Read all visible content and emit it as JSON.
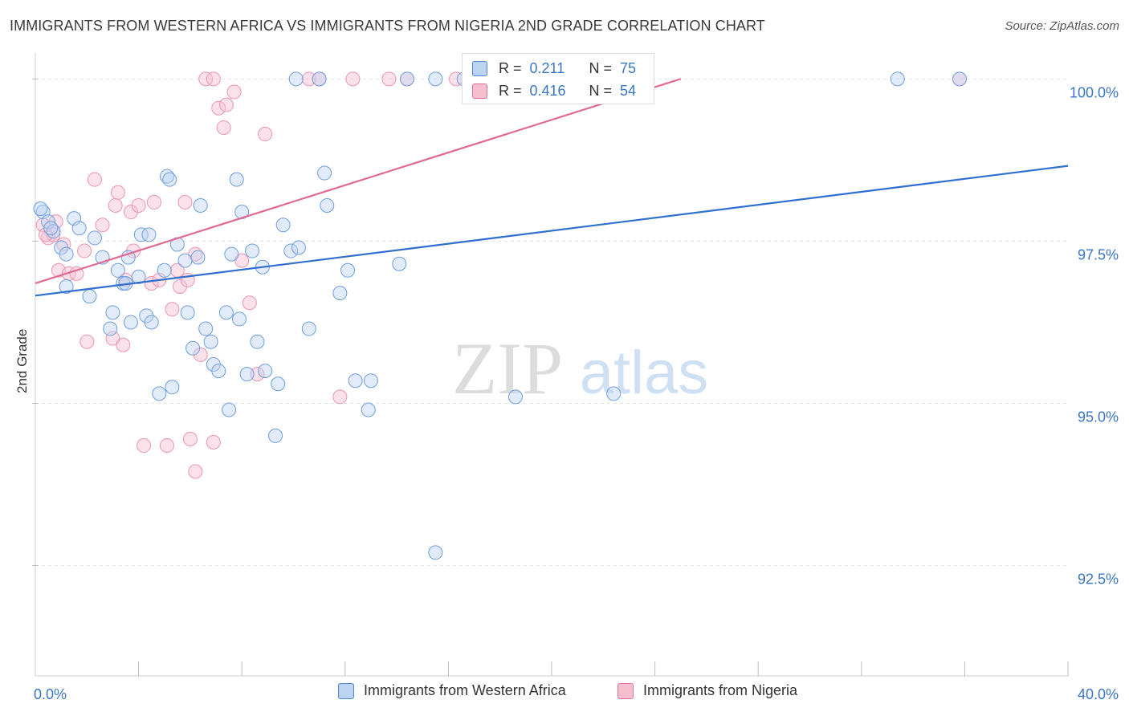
{
  "title": "IMMIGRANTS FROM WESTERN AFRICA VS IMMIGRANTS FROM NIGERIA 2ND GRADE CORRELATION CHART",
  "source": "Source: ZipAtlas.com",
  "watermark": {
    "zip": "ZIP",
    "atlas": "atlas"
  },
  "colors": {
    "blue": "#4f86d6",
    "blue_fill": "#bcd3f2",
    "pink": "#e26f97",
    "pink_fill": "#f6bfd0",
    "axis_text": "#3a76c6"
  },
  "legend_stats": [
    {
      "r_label": "R =",
      "r_value": "0.211",
      "n_label": "N =",
      "n_value": "75"
    },
    {
      "r_label": "R =",
      "r_value": "0.416",
      "n_label": "N =",
      "n_value": "54"
    }
  ],
  "chart_data": {
    "type": "scatter",
    "xlabel": "",
    "ylabel": "2nd Grade",
    "xlim": [
      0,
      40
    ],
    "ylim": [
      90.8,
      100.4
    ],
    "x_tick_labels": [
      {
        "value": 0,
        "label": "0.0%"
      },
      {
        "value": 40,
        "label": "40.0%"
      }
    ],
    "y_tick_labels": [
      {
        "value": 92.5,
        "label": "92.5%"
      },
      {
        "value": 95.0,
        "label": "95.0%"
      },
      {
        "value": 97.5,
        "label": "97.5%"
      },
      {
        "value": 100.0,
        "label": "100.0%"
      }
    ],
    "x_minor_ticks": [
      4,
      8,
      12,
      16,
      20,
      24,
      28,
      32,
      36,
      40
    ],
    "grid": true,
    "series": [
      {
        "name": "Immigrants from Western Africa",
        "color": "#4f86d6",
        "trend": {
          "x": [
            0,
            40
          ],
          "y": [
            96.66,
            98.66
          ]
        },
        "points": [
          [
            0.3,
            97.95
          ],
          [
            0.5,
            97.8
          ],
          [
            0.7,
            97.65
          ],
          [
            1.0,
            97.4
          ],
          [
            1.2,
            97.3
          ],
          [
            1.2,
            96.8
          ],
          [
            1.5,
            97.85
          ],
          [
            1.7,
            97.7
          ],
          [
            2.1,
            96.65
          ],
          [
            2.3,
            97.55
          ],
          [
            2.6,
            97.25
          ],
          [
            2.9,
            96.15
          ],
          [
            3.0,
            96.4
          ],
          [
            3.2,
            97.05
          ],
          [
            3.4,
            96.85
          ],
          [
            3.5,
            96.85
          ],
          [
            3.6,
            97.25
          ],
          [
            3.7,
            96.25
          ],
          [
            4.0,
            96.95
          ],
          [
            4.1,
            97.6
          ],
          [
            4.3,
            96.35
          ],
          [
            4.4,
            97.6
          ],
          [
            4.5,
            96.25
          ],
          [
            4.8,
            95.15
          ],
          [
            5.0,
            97.05
          ],
          [
            5.1,
            98.5
          ],
          [
            5.3,
            95.25
          ],
          [
            5.5,
            97.45
          ],
          [
            5.8,
            97.2
          ],
          [
            5.9,
            96.4
          ],
          [
            6.1,
            95.85
          ],
          [
            6.3,
            97.25
          ],
          [
            6.4,
            98.05
          ],
          [
            6.6,
            96.15
          ],
          [
            6.8,
            95.95
          ],
          [
            6.9,
            95.6
          ],
          [
            7.1,
            95.5
          ],
          [
            7.4,
            96.4
          ],
          [
            7.5,
            94.9
          ],
          [
            7.6,
            97.3
          ],
          [
            7.8,
            98.45
          ],
          [
            8.0,
            97.95
          ],
          [
            8.2,
            95.45
          ],
          [
            8.4,
            97.35
          ],
          [
            8.6,
            95.95
          ],
          [
            8.8,
            97.1
          ],
          [
            8.9,
            95.5
          ],
          [
            9.3,
            94.5
          ],
          [
            9.4,
            95.3
          ],
          [
            9.6,
            97.75
          ],
          [
            9.9,
            97.35
          ],
          [
            10.1,
            100.0
          ],
          [
            10.6,
            96.15
          ],
          [
            11.0,
            100.0
          ],
          [
            11.2,
            98.55
          ],
          [
            11.3,
            98.05
          ],
          [
            11.8,
            96.7
          ],
          [
            12.1,
            97.05
          ],
          [
            12.4,
            95.35
          ],
          [
            12.9,
            94.9
          ],
          [
            13.0,
            95.35
          ],
          [
            14.1,
            97.15
          ],
          [
            14.4,
            100.0
          ],
          [
            15.5,
            100.0
          ],
          [
            15.5,
            92.7
          ],
          [
            16.6,
            100.0
          ],
          [
            18.6,
            95.1
          ],
          [
            22.4,
            95.15
          ],
          [
            33.4,
            100.0
          ],
          [
            35.8,
            100.0
          ],
          [
            0.2,
            98.0
          ],
          [
            0.6,
            97.7
          ],
          [
            5.2,
            98.45
          ],
          [
            7.9,
            96.3
          ],
          [
            10.2,
            97.4
          ]
        ]
      },
      {
        "name": "Immigrants from Nigeria",
        "color": "#e26f97",
        "trend": {
          "x": [
            0,
            25
          ],
          "y": [
            96.85,
            100.0
          ]
        },
        "points": [
          [
            0.3,
            97.75
          ],
          [
            0.5,
            97.55
          ],
          [
            0.7,
            97.6
          ],
          [
            0.8,
            97.8
          ],
          [
            0.9,
            97.05
          ],
          [
            1.1,
            97.45
          ],
          [
            1.3,
            97.0
          ],
          [
            1.6,
            97.0
          ],
          [
            1.9,
            97.35
          ],
          [
            2.0,
            95.95
          ],
          [
            2.3,
            98.45
          ],
          [
            2.6,
            97.75
          ],
          [
            3.0,
            96.0
          ],
          [
            3.1,
            98.05
          ],
          [
            3.2,
            98.25
          ],
          [
            3.4,
            95.9
          ],
          [
            3.5,
            96.9
          ],
          [
            3.7,
            97.95
          ],
          [
            3.8,
            97.35
          ],
          [
            4.0,
            98.05
          ],
          [
            4.2,
            94.35
          ],
          [
            4.5,
            96.85
          ],
          [
            4.6,
            98.1
          ],
          [
            4.8,
            96.9
          ],
          [
            5.1,
            94.35
          ],
          [
            5.3,
            96.45
          ],
          [
            5.5,
            97.05
          ],
          [
            5.6,
            96.8
          ],
          [
            5.8,
            98.1
          ],
          [
            5.9,
            96.9
          ],
          [
            6.0,
            94.45
          ],
          [
            6.2,
            97.3
          ],
          [
            6.4,
            95.75
          ],
          [
            6.6,
            100.0
          ],
          [
            6.9,
            100.0
          ],
          [
            7.1,
            99.55
          ],
          [
            7.3,
            99.25
          ],
          [
            7.4,
            99.6
          ],
          [
            7.7,
            99.8
          ],
          [
            8.0,
            97.2
          ],
          [
            8.3,
            96.55
          ],
          [
            8.6,
            95.45
          ],
          [
            8.9,
            99.15
          ],
          [
            10.6,
            100.0
          ],
          [
            11.0,
            100.0
          ],
          [
            11.8,
            95.1
          ],
          [
            12.3,
            100.0
          ],
          [
            13.7,
            100.0
          ],
          [
            14.4,
            100.0
          ],
          [
            16.3,
            100.0
          ],
          [
            35.8,
            100.0
          ],
          [
            6.2,
            93.95
          ],
          [
            6.9,
            94.4
          ],
          [
            0.4,
            97.6
          ]
        ]
      }
    ]
  }
}
